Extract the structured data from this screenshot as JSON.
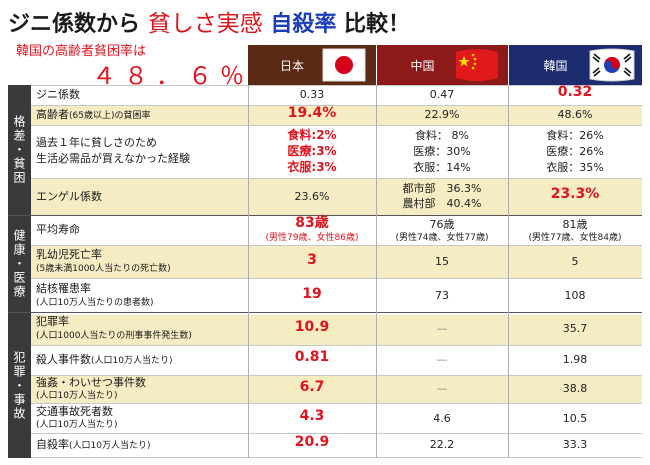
{
  "title": {
    "part1": "ジニ係数から",
    "part2": "貧しさ実感",
    "part3": "自殺率",
    "part4": "比較！"
  },
  "subtitle": "韓国の高齢者貧困率は",
  "highlight_value": "４８．６％",
  "columns": [
    {
      "name": "日本",
      "color": "#5a2a14",
      "flag": "japan"
    },
    {
      "name": "中国",
      "color": "#8c1a1a",
      "flag": "china"
    },
    {
      "name": "韓国",
      "color": "#1c2c6e",
      "flag": "korea"
    }
  ],
  "categories": [
    "格差・貧困",
    "健康・医療",
    "犯罪・事故"
  ],
  "rows": [
    {
      "label": "ジニ係数",
      "note": "",
      "japan": "0.33",
      "china": "0.47",
      "korea": "0.32"
    },
    {
      "label": "高齢者",
      "note": "(65歳以上)の貧困率",
      "japan": "19.4%",
      "china": "22.9%",
      "korea": "48.6%"
    },
    {
      "label": "過去１年に貧しさのため",
      "label2": "生活必需品が買えなかった経験",
      "japan_lines": [
        "食料:2%",
        "医療:3%",
        "衣服:3%"
      ],
      "china_lines": [
        "食料：  8%",
        "医療：30%",
        "衣服：14%"
      ],
      "korea_lines": [
        "食料：26%",
        "医療：26%",
        "衣服：35%"
      ]
    },
    {
      "label": "エンゲル係数",
      "japan": "23.6%",
      "china_lines": [
        "都市部　36.3%",
        "農村部　40.4%"
      ],
      "korea": "23.3%"
    },
    {
      "label": "平均寿命",
      "japan": "83歳",
      "japan_sub": "(男性79歳、女性86歳)",
      "china": "76歳",
      "china_sub": "(男性74歳、女性77歳)",
      "korea": "81歳",
      "korea_sub": "(男性77歳、女性84歳)"
    },
    {
      "label": "乳幼児死亡率",
      "note": "(5歳未満1000人当たりの死亡数)",
      "japan": "3",
      "china": "15",
      "korea": "5"
    },
    {
      "label": "結核罹患率",
      "note": "(人口10万人当たりの患者数)",
      "japan": "19",
      "china": "73",
      "korea": "108"
    },
    {
      "label": "犯罪率",
      "note": "(人口1000人当たりの刑事事件発生数)",
      "japan": "10.9",
      "china": "—",
      "korea": "35.7"
    },
    {
      "label": "殺人事件数",
      "note": "(人口10万人当たり)",
      "japan": "0.81",
      "china": "—",
      "korea": "1.98"
    },
    {
      "label": "強姦・わいせつ事件数",
      "note": "(人口10万人当たり)",
      "japan": "6.7",
      "china": "—",
      "korea": "38.8"
    },
    {
      "label": "交通事故死者数",
      "note": "(人口10万人当たり)",
      "japan": "4.3",
      "china": "4.6",
      "korea": "10.5"
    },
    {
      "label": "自殺率",
      "note": "(人口10万人当たり)",
      "japan": "20.9",
      "china": "22.2",
      "korea": "33.3"
    }
  ]
}
